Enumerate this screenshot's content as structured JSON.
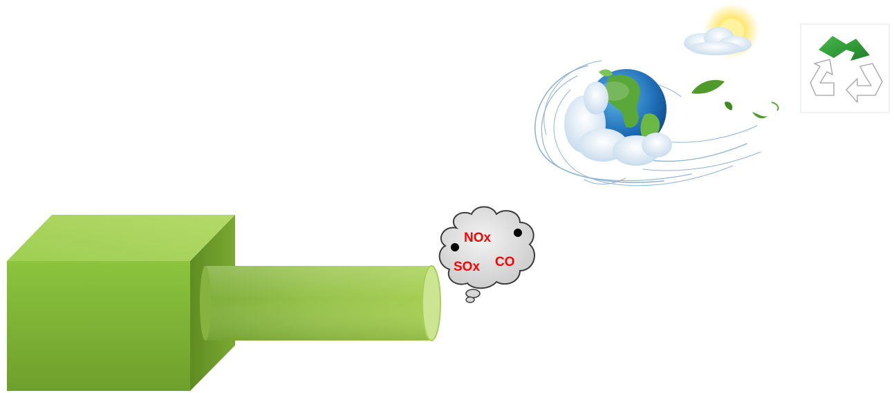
{
  "diagram": {
    "emissions": {
      "labels": [
        "NOx",
        "SOx",
        "CO"
      ],
      "label_color": "#ff0000",
      "cloud_color": "#d6d6d6",
      "particle_color": "#000000"
    },
    "machine": {
      "box_color": "#84b73c",
      "pipe_color": "#a4cc50"
    },
    "eco_illustration": {
      "icons": [
        "globe-icon",
        "cloud-icon",
        "sun-icon",
        "wind-swirl-icon",
        "leaf-icon"
      ]
    },
    "recycle_symbol": {
      "arrow_color": "#2e9a35",
      "outline_color": "#b0b0b0"
    }
  }
}
